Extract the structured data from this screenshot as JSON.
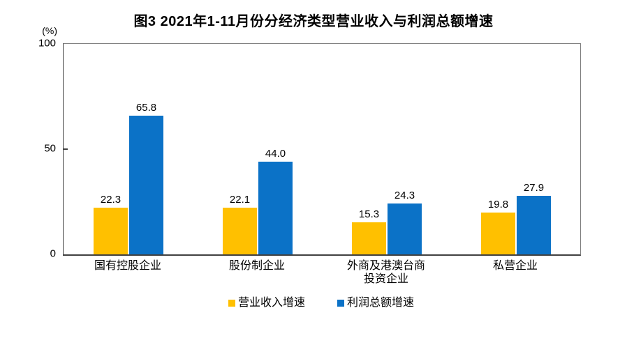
{
  "figure": {
    "title": "图3 2021年1-11月份分经济类型营业收入与利润总额增速",
    "unit_label": "(%)"
  },
  "chart_data": {
    "type": "bar",
    "title": "图3 2021年1-11月份分经济类型营业收入与利润总额增速",
    "unit": "(%)",
    "categories": [
      "国有控股企业",
      "股份制企业",
      "外商及港澳台商\n投资企业",
      "私营企业"
    ],
    "series": [
      {
        "name": "营业收入增速",
        "color": "#FFC000",
        "values": [
          22.3,
          22.1,
          15.3,
          19.8
        ],
        "labels": [
          "22.3",
          "22.1",
          "15.3",
          "19.8"
        ]
      },
      {
        "name": "利润总额增速",
        "color": "#0B72C7",
        "values": [
          65.8,
          44.0,
          24.3,
          27.9
        ],
        "labels": [
          "65.8",
          "44.0",
          "24.3",
          "27.9"
        ]
      }
    ],
    "ylim": [
      0,
      100
    ],
    "yticks": [
      0,
      50,
      100
    ],
    "grid": false,
    "legend_position": "bottom",
    "value_labels": true
  }
}
